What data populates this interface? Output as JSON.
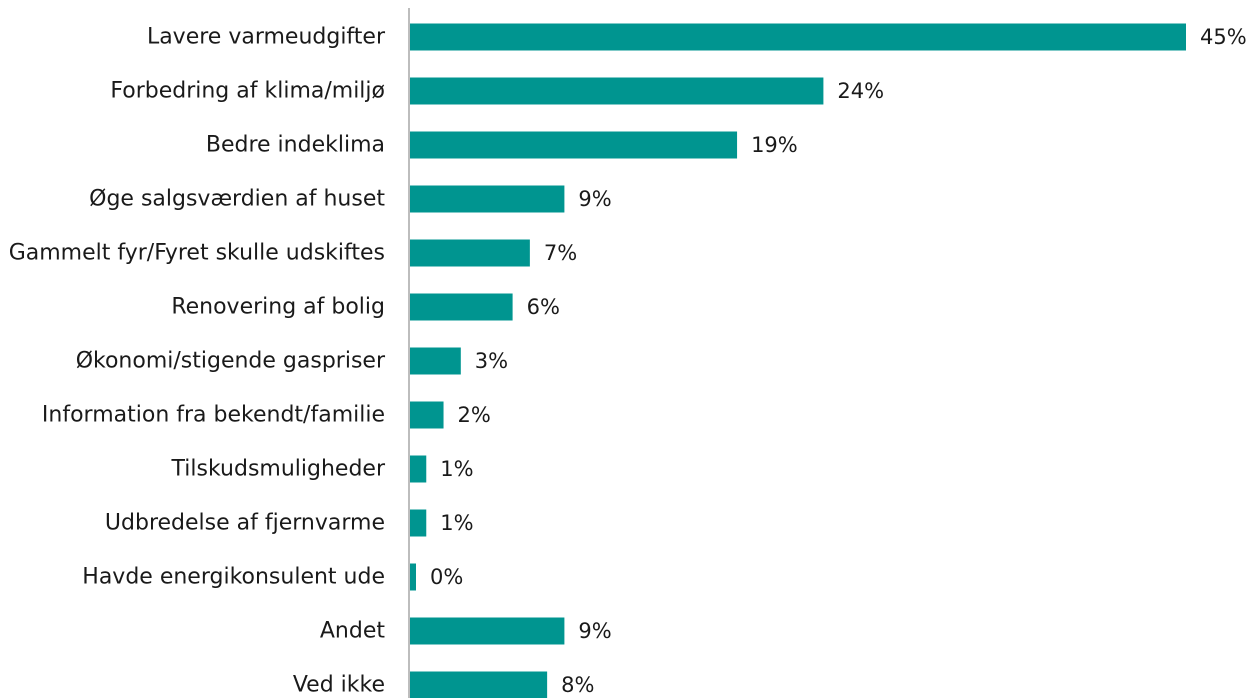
{
  "chart_data": {
    "type": "bar",
    "orientation": "horizontal",
    "title": "",
    "xlabel": "",
    "ylabel": "",
    "xlim": [
      0,
      45
    ],
    "grid": false,
    "legend": "none",
    "value_format": "percent",
    "bar_color": "#009590",
    "axis_color": "#bdbdbd",
    "categories": [
      "Lavere varmeudgifter",
      "Forbedring af klima/miljø",
      "Bedre indeklima",
      "Øge salgsværdien af huset",
      "Gammelt fyr/Fyret skulle udskiftes",
      "Renovering af bolig",
      "Økonomi/stigende gaspriser",
      "Information fra bekendt/familie",
      "Tilskudsmuligheder",
      "Udbredelse af fjernvarme",
      "Havde energikonsulent ude",
      "Andet",
      "Ved ikke"
    ],
    "values": [
      45,
      24,
      19,
      9,
      7,
      6,
      3,
      2,
      1,
      1,
      0,
      9,
      8
    ],
    "value_labels": [
      "45%",
      "24%",
      "19%",
      "9%",
      "7%",
      "6%",
      "3%",
      "2%",
      "1%",
      "1%",
      "0%",
      "9%",
      "8%"
    ]
  }
}
